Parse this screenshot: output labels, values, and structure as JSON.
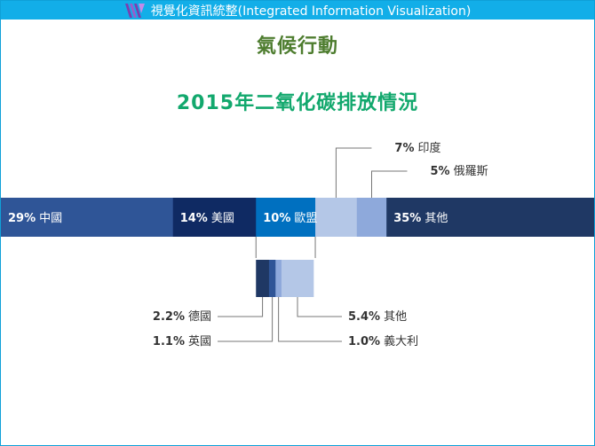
{
  "header": {
    "brand": "視覺化資訊統整(Integrated Information Visualization)",
    "logo_icon": "v-logo-icon"
  },
  "subject": "氣候行動",
  "chart_data": [
    {
      "type": "bar",
      "orientation": "horizontal-stacked",
      "title": "2015年二氧化碳排放情況",
      "categories": [
        "中國",
        "美國",
        "歐盟",
        "印度",
        "俄羅斯",
        "其他"
      ],
      "values": [
        29,
        14,
        10,
        7,
        5,
        35
      ],
      "labels": [
        "29%",
        "14%",
        "10%",
        "7%",
        "5%",
        "35%"
      ],
      "colors": [
        "#2f5597",
        "#0f2a63",
        "#0070c0",
        "#b4c7e7",
        "#8ea9db",
        "#1f3864"
      ]
    },
    {
      "type": "bar",
      "orientation": "horizontal-stacked",
      "parent": "歐盟",
      "categories": [
        "德國",
        "英國",
        "義大利",
        "其他"
      ],
      "values": [
        2.2,
        1.1,
        1.0,
        5.4
      ],
      "labels": [
        "2.2%",
        "1.1%",
        "1.0%",
        "5.4%"
      ],
      "colors": [
        "#1f3864",
        "#2f5597",
        "#8ea9db",
        "#b4c7e7"
      ]
    }
  ]
}
